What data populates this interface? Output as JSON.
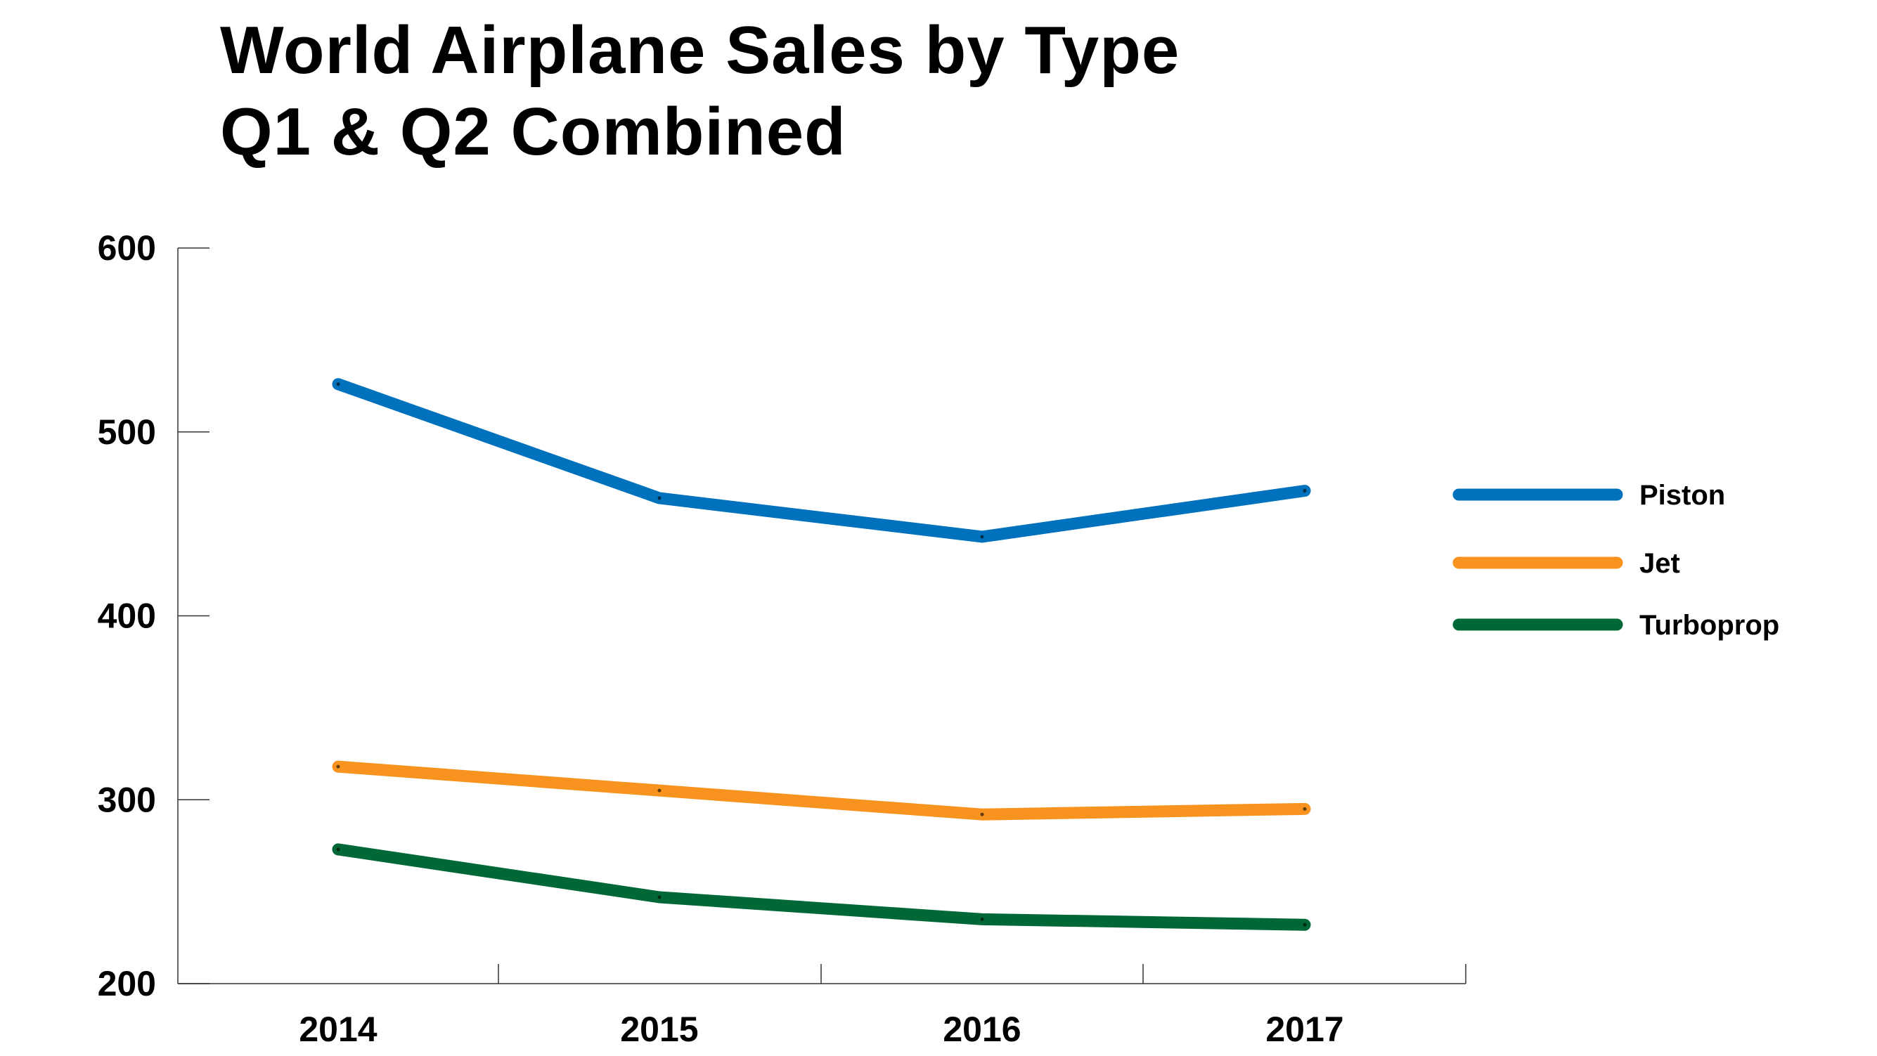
{
  "chart_data": {
    "type": "line",
    "title": [
      "World Airplane Sales by Type",
      "Q1 & Q2 Combined"
    ],
    "xlabel": "",
    "ylabel": "",
    "categories": [
      "2014",
      "2015",
      "2016",
      "2017"
    ],
    "ylim": [
      200,
      600
    ],
    "yticks": [
      "200",
      "300",
      "400",
      "500",
      "600"
    ],
    "grid": false,
    "legend_position": "right",
    "series": [
      {
        "name": "Piston",
        "color": "#0071BC",
        "values": [
          526,
          464,
          443,
          468
        ]
      },
      {
        "name": "Jet",
        "color": "#F7931E",
        "values": [
          318,
          305,
          292,
          295
        ]
      },
      {
        "name": "Turboprop",
        "color": "#006837",
        "values": [
          273,
          247,
          235,
          232
        ]
      }
    ]
  }
}
